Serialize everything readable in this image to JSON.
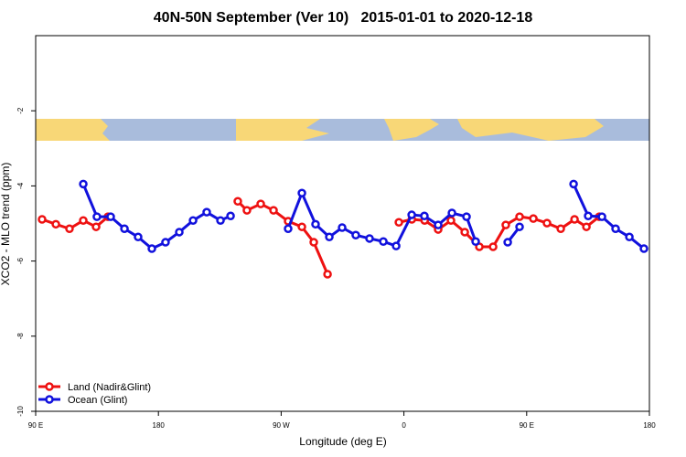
{
  "chart_data": {
    "type": "line",
    "title": "40N-50N September (Ver 10)   2015-01-01 to 2020-12-18",
    "x_label": "Longitude (deg E)",
    "y_label": "XCO2 - MLO trend (ppm)",
    "xlim": [
      90,
      540
    ],
    "xticks": [
      {
        "value": 90,
        "label": "90 E"
      },
      {
        "value": 180,
        "label": "180"
      },
      {
        "value": 270,
        "label": "90 W"
      },
      {
        "value": 360,
        "label": "0"
      },
      {
        "value": 450,
        "label": "90 E"
      },
      {
        "value": 540,
        "label": "180"
      }
    ],
    "ylim": [
      -10,
      0
    ],
    "yticks": [
      -10,
      -8,
      -6,
      -4,
      -2
    ],
    "legend": "bottom-left",
    "series": [
      {
        "name": "Land (Nadir&Glint)",
        "color": "#ee1111",
        "x": [
          94.7,
          104.8,
          114.8,
          124.9,
          134.3,
          143,
          190,
          238.2,
          244.9,
          255,
          264.4,
          275.1,
          285.2,
          293.9,
          304,
          330,
          356.3,
          365.8,
          375.2,
          385.1,
          394.5,
          404.6,
          415.3,
          425.4,
          434.7,
          444.8,
          454.9,
          464.9,
          475,
          485.1,
          493.8,
          503.2
        ],
        "values": [
          -4.89,
          -5.02,
          -5.14,
          -4.92,
          -5.09,
          -4.82,
          null,
          -4.41,
          -4.65,
          -4.48,
          -4.65,
          -4.94,
          -5.09,
          -5.5,
          -6.35,
          null,
          -4.97,
          -4.89,
          -4.92,
          -5.16,
          -4.92,
          -5.23,
          -5.62,
          -5.62,
          -5.04,
          -4.82,
          -4.87,
          -4.99,
          -5.14,
          -4.89,
          -5.09,
          -4.82
        ]
      },
      {
        "name": "Ocean (Glint)",
        "color": "#1111dd",
        "x": [
          124.9,
          134.9,
          145,
          155.1,
          165.1,
          175.2,
          185.2,
          195.3,
          205.4,
          215.4,
          225.5,
          232.9,
          254,
          275.1,
          285.2,
          295.2,
          305.3,
          314.7,
          324.7,
          334.8,
          344.9,
          354.3,
          365.7,
          375,
          385.1,
          395.2,
          405.9,
          412.6,
          424,
          436.1,
          444.8,
          465,
          484.4,
          495.1,
          505.2,
          515.2,
          525.3,
          536
        ],
        "values": [
          -3.95,
          -4.82,
          -4.82,
          -5.14,
          -5.36,
          -5.67,
          -5.5,
          -5.23,
          -4.92,
          -4.7,
          -4.92,
          -4.8,
          null,
          -5.14,
          -4.19,
          -5.02,
          -5.36,
          -5.11,
          -5.31,
          -5.4,
          -5.48,
          -5.6,
          -4.77,
          -4.8,
          -5.04,
          -4.72,
          -4.82,
          -5.48,
          null,
          -5.5,
          -5.09,
          null,
          -3.95,
          -4.8,
          -4.82,
          -5.14,
          -5.36,
          -5.67
        ]
      }
    ]
  }
}
